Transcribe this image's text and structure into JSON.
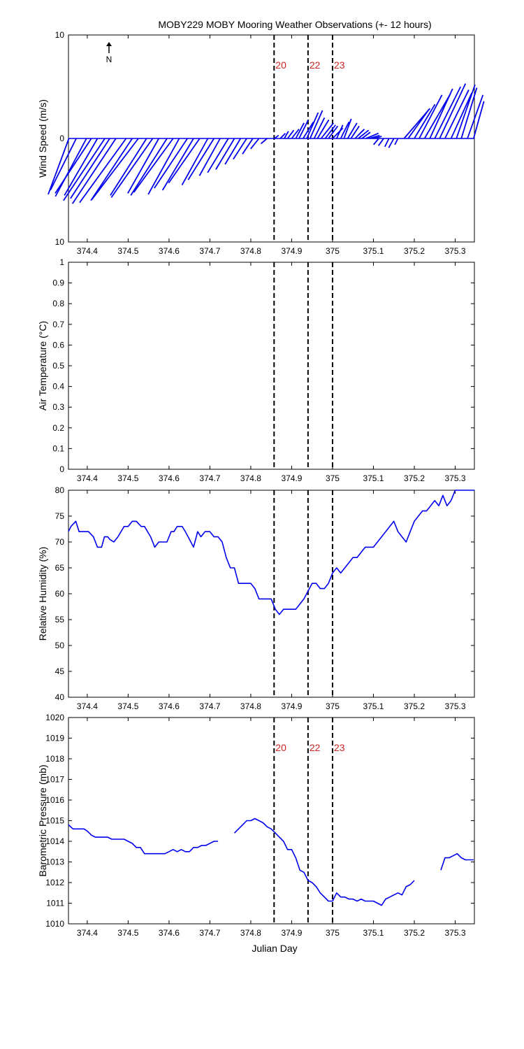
{
  "figure": {
    "title": "MOBY229 MOBY Mooring Weather Observations (+- 12 hours)",
    "north_label": "N",
    "xlabel": "Julian Day"
  },
  "colors": {
    "series": "#0000ee",
    "vline_label": "#cc2222",
    "axis": "#000000"
  },
  "x_ticks": [
    374.4,
    374.5,
    374.6,
    374.7,
    374.8,
    374.9,
    375,
    375.1,
    375.2,
    375.3
  ],
  "x_tick_labels": [
    "374.4",
    "374.5",
    "374.6",
    "374.7",
    "374.8",
    "374.9",
    "375",
    "375.1",
    "375.2",
    "375.3"
  ],
  "event_lines": [
    {
      "x": 374.857,
      "label": "20"
    },
    {
      "x": 374.94,
      "label": "22"
    },
    {
      "x": 375.0,
      "label": "23"
    }
  ],
  "chart_data": [
    {
      "type": "line",
      "subtype": "wind-vector-stick",
      "ylabel": "Wind Speed (m/s)",
      "xlim": [
        374.354,
        375.347
      ],
      "ylim": [
        -10,
        10
      ],
      "y_ticks": [
        10,
        0,
        -10
      ],
      "y_tick_labels": [
        "10",
        "0",
        "10"
      ],
      "show_event_labels": true,
      "series": [
        {
          "x": [
            374.355,
            374.373,
            374.398,
            374.41,
            374.425,
            374.443,
            374.455,
            374.47,
            374.495,
            374.51,
            374.525,
            374.545,
            374.56,
            374.575,
            374.595,
            374.61,
            374.625,
            374.645,
            374.66,
            374.675,
            374.695,
            374.71,
            374.725,
            374.745,
            374.76,
            374.775,
            374.79,
            374.805,
            374.82,
            374.84,
            374.858,
            374.872,
            374.882,
            374.89,
            374.9,
            374.91,
            374.918,
            374.928,
            374.937,
            374.945,
            374.955,
            374.963,
            374.972,
            374.982,
            374.99,
            375.0,
            375.01,
            375.02,
            375.028,
            375.037,
            375.045,
            375.055,
            375.063,
            375.072,
            375.082,
            375.09,
            375.1,
            375.113,
            375.125,
            375.138,
            375.15,
            375.16,
            375.175,
            375.185,
            375.2,
            375.212,
            375.225,
            375.238,
            375.25,
            375.262,
            375.275,
            375.29,
            375.303,
            375.315,
            375.33,
            375.345
          ],
          "u": [
            -2.0,
            -2.5,
            -3.0,
            -3.5,
            -3.2,
            -4.0,
            -3.8,
            -4.2,
            -4.5,
            -4.0,
            -4.5,
            -3.5,
            -4.0,
            -3.0,
            -3.5,
            -3.8,
            -3.0,
            -3.2,
            -3.0,
            -3.0,
            -2.5,
            -2.5,
            -2.0,
            -2.0,
            -1.8,
            -1.5,
            -1.3,
            -1.0,
            -0.8,
            -0.6,
            0.4,
            0.5,
            0.4,
            0.6,
            0.7,
            0.8,
            0.9,
            1.0,
            1.1,
            1.2,
            1.0,
            1.1,
            1.2,
            1.0,
            0.9,
            1.0,
            0.6,
            0.8,
            0.7,
            0.9,
            0.8,
            0.9,
            1.0,
            0.8,
            1.2,
            1.0,
            0.8,
            -0.5,
            -0.5,
            -0.4,
            -0.5,
            -0.3,
            2.5,
            2.0,
            2.0,
            2.2,
            2.5,
            2.2,
            2.5,
            2.5,
            2.3,
            2.0,
            1.8,
            1.5,
            1.5,
            1.0
          ],
          "v": [
            -5.4,
            -5.0,
            -5.6,
            -5.3,
            -5.5,
            -6.0,
            -5.8,
            -6.3,
            -6.2,
            -6.0,
            -5.9,
            -5.5,
            -5.7,
            -5.3,
            -5.5,
            -5.2,
            -5.4,
            -4.8,
            -5.0,
            -4.3,
            -4.5,
            -4.0,
            -3.6,
            -3.3,
            -3.0,
            -2.5,
            -2.0,
            -1.5,
            -1.0,
            -0.5,
            0.3,
            0.5,
            0.7,
            0.8,
            0.9,
            1.5,
            1.8,
            1.6,
            2.5,
            2.7,
            2.0,
            1.8,
            1.5,
            1.3,
            1.2,
            1.0,
            1.3,
            1.6,
            1.9,
            1.5,
            1.2,
            0.9,
            0.8,
            0.6,
            0.5,
            0.3,
            0.2,
            -0.6,
            -0.7,
            -0.8,
            -0.9,
            -0.6,
            2.9,
            2.8,
            3.3,
            4.2,
            4.3,
            4.8,
            5.0,
            5.3,
            4.7,
            4.4,
            5.2,
            4.9,
            4.2,
            3.6
          ]
        }
      ]
    },
    {
      "type": "line",
      "ylabel": "Air Temperature (°C)",
      "xlim": [
        374.354,
        375.347
      ],
      "ylim": [
        0,
        1
      ],
      "y_ticks": [
        0,
        0.1,
        0.2,
        0.3,
        0.4,
        0.5,
        0.6,
        0.7,
        0.8,
        0.9,
        1
      ],
      "y_tick_labels": [
        "0",
        "0.1",
        "0.2",
        "0.3",
        "0.4",
        "0.5",
        "0.6",
        "0.7",
        "0.8",
        "0.9",
        "1"
      ],
      "show_event_labels": false,
      "series": []
    },
    {
      "type": "line",
      "ylabel": "Relative Humidity (%)",
      "xlim": [
        374.354,
        375.347
      ],
      "ylim": [
        40,
        80
      ],
      "y_ticks": [
        40,
        45,
        50,
        55,
        60,
        65,
        70,
        75,
        80
      ],
      "y_tick_labels": [
        "40",
        "45",
        "50",
        "55",
        "60",
        "65",
        "70",
        "75",
        "80"
      ],
      "show_event_labels": false,
      "series": [
        {
          "x": [
            374.354,
            374.36,
            374.372,
            374.38,
            374.395,
            374.403,
            374.415,
            374.425,
            374.435,
            374.442,
            374.45,
            374.455,
            374.465,
            374.475,
            374.49,
            374.5,
            374.51,
            374.52,
            374.532,
            374.54,
            374.555,
            374.565,
            374.575,
            374.585,
            374.595,
            374.605,
            374.612,
            374.62,
            374.632,
            374.64,
            374.65,
            374.66,
            374.67,
            374.678,
            374.688,
            374.7,
            374.71,
            374.72,
            374.73,
            374.74,
            374.75,
            374.76,
            374.77,
            374.78,
            374.79,
            374.8,
            374.81,
            374.82,
            374.83,
            374.84,
            374.85,
            374.86,
            374.87,
            374.88,
            374.89,
            374.9,
            374.91,
            374.92,
            374.93,
            374.94,
            374.95,
            374.96,
            374.97,
            374.98,
            374.99,
            375.0,
            375.01,
            375.02,
            375.03,
            375.04,
            375.05,
            375.06,
            375.07,
            375.08,
            375.09,
            375.1,
            375.11,
            375.12,
            375.13,
            375.14,
            375.15,
            375.16,
            375.17,
            375.18,
            375.19,
            375.2,
            375.21,
            375.22,
            375.23,
            375.24,
            375.25,
            375.26,
            375.27,
            375.28,
            375.29,
            375.3,
            375.31,
            375.32,
            375.33,
            375.34,
            375.347
          ],
          "y": [
            72,
            73,
            74,
            72,
            72,
            72,
            71,
            69,
            69,
            71,
            71,
            70.5,
            70,
            71,
            73,
            73,
            74,
            74,
            73,
            73,
            71,
            69,
            70,
            70,
            70,
            72,
            72,
            73,
            73,
            72,
            70.5,
            69,
            72,
            71,
            72,
            72,
            71,
            71,
            70,
            67,
            65,
            65,
            62,
            62,
            62,
            62,
            61,
            59,
            59,
            59,
            59,
            57,
            56,
            57,
            57,
            57,
            57,
            58,
            59,
            60.5,
            62,
            62,
            61,
            61,
            62,
            64,
            65,
            64,
            65,
            66,
            67,
            67,
            68,
            69,
            69,
            69,
            70,
            71,
            72,
            73,
            74,
            72,
            71,
            70,
            72,
            74,
            75,
            76,
            76,
            77,
            78,
            77,
            79,
            77,
            78,
            80,
            80,
            80,
            80,
            80,
            80
          ]
        }
      ]
    },
    {
      "type": "line",
      "ylabel": "Barometric Pressure (mb)",
      "xlim": [
        374.354,
        375.347
      ],
      "ylim": [
        1010,
        1020
      ],
      "y_ticks": [
        1010,
        1011,
        1012,
        1013,
        1014,
        1015,
        1016,
        1017,
        1018,
        1019,
        1020
      ],
      "y_tick_labels": [
        "1010",
        "1011",
        "1012",
        "1013",
        "1014",
        "1015",
        "1016",
        "1017",
        "1018",
        "1019",
        "1020"
      ],
      "show_event_labels": true,
      "series": [
        {
          "x": [
            374.354,
            374.365,
            374.38,
            374.392,
            374.4,
            374.41,
            374.42,
            374.43,
            374.44,
            374.45,
            374.46,
            374.47,
            374.48,
            374.49,
            374.5,
            374.51,
            374.52,
            374.53,
            374.54,
            374.55,
            374.56,
            374.57,
            374.58,
            374.59,
            374.6,
            374.61,
            374.62,
            374.63,
            374.64,
            374.65,
            374.66,
            374.67,
            374.68,
            374.69,
            374.7,
            374.71,
            374.72,
            374.73,
            374.74,
            374.75,
            null,
            374.76,
            374.77,
            374.78,
            374.79,
            374.8,
            374.81,
            374.82,
            374.83,
            374.84,
            374.85,
            374.86,
            374.87,
            374.88,
            374.89,
            374.9,
            374.91,
            374.92,
            374.93,
            374.94,
            374.95,
            374.96,
            374.97,
            374.98,
            374.99,
            375.0,
            375.01,
            375.02,
            375.03,
            375.04,
            375.05,
            375.06,
            375.07,
            375.08,
            375.09,
            375.1,
            375.11,
            375.12,
            375.13,
            375.14,
            375.15,
            375.16,
            375.17,
            375.18,
            375.19,
            375.2,
            375.21,
            375.22,
            375.23,
            375.24,
            375.25,
            null,
            375.265,
            375.275,
            375.285,
            375.295,
            375.305,
            375.315,
            375.325,
            375.335,
            375.345
          ],
          "y": [
            1014.8,
            1014.6,
            1014.6,
            1014.6,
            1014.5,
            1014.3,
            1014.2,
            1014.2,
            1014.2,
            1014.2,
            1014.1,
            1014.1,
            1014.1,
            1014.1,
            1014,
            1013.9,
            1013.7,
            1013.7,
            1013.4,
            1013.4,
            1013.4,
            1013.4,
            1013.4,
            1013.4,
            1013.5,
            1013.6,
            1013.5,
            1013.6,
            1013.5,
            1013.5,
            1013.7,
            1013.7,
            1013.8,
            1013.8,
            1013.9,
            1014,
            1014,
            null,
            null,
            null,
            null,
            1014.4,
            1014.6,
            1014.8,
            1015,
            1015,
            1015.1,
            1015,
            1014.9,
            1014.7,
            1014.6,
            1014.4,
            1014.2,
            1014,
            1013.6,
            1013.6,
            1013.2,
            1012.6,
            1012.5,
            1012.1,
            1012,
            1011.8,
            1011.5,
            1011.3,
            1011.1,
            1011.1,
            1011.5,
            1011.3,
            1011.3,
            1011.2,
            1011.2,
            1011.1,
            1011.2,
            1011.1,
            1011.1,
            1011.1,
            1011,
            1010.9,
            1011.2,
            1011.3,
            1011.4,
            1011.5,
            1011.4,
            1011.8,
            1011.9,
            1012.1,
            null,
            null,
            null,
            null,
            null,
            null,
            1012.6,
            1013.2,
            1013.2,
            1013.3,
            1013.4,
            1013.2,
            1013.1,
            1013.1,
            1013.1
          ]
        }
      ]
    }
  ]
}
